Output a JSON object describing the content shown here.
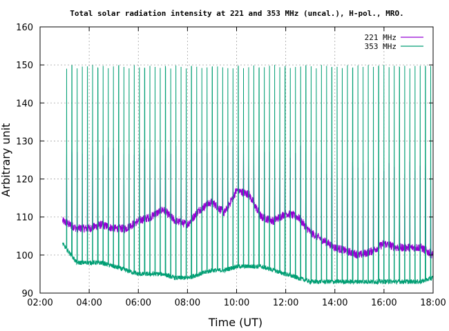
{
  "chart_data": {
    "type": "line",
    "title": "Total solar radiation intensity at 221 and 353 MHz (uncal.), H-pol., MRO.",
    "xlabel": "Time (UT)",
    "ylabel": "Arbitrary unit",
    "xlim": [
      "02:00",
      "18:00"
    ],
    "ylim": [
      90,
      160
    ],
    "xticks": [
      "02:00",
      "04:00",
      "06:00",
      "08:00",
      "10:00",
      "12:00",
      "14:00",
      "16:00",
      "18:00"
    ],
    "yticks": [
      "90",
      "100",
      "110",
      "120",
      "130",
      "140",
      "150",
      "160"
    ],
    "grid": true,
    "legend_position": "top-right",
    "colors": {
      "221 MHz": "#9400d3",
      "353 MHz": "#009e73"
    },
    "series": [
      {
        "name": "221 MHz",
        "x": [
          "02:55",
          "03:30",
          "04:00",
          "04:30",
          "05:00",
          "05:30",
          "06:00",
          "06:30",
          "07:00",
          "07:30",
          "08:00",
          "08:30",
          "09:00",
          "09:30",
          "10:00",
          "10:30",
          "11:00",
          "11:30",
          "12:00",
          "12:30",
          "13:00",
          "13:30",
          "14:00",
          "14:30",
          "15:00",
          "15:30",
          "16:00",
          "16:30",
          "17:00",
          "17:30",
          "18:00"
        ],
        "values": [
          109,
          107,
          107,
          108,
          107,
          107,
          109,
          110,
          112,
          109,
          108,
          112,
          114,
          111,
          117,
          116,
          110,
          109,
          111,
          110,
          106,
          104,
          102,
          101,
          100,
          101,
          103,
          102,
          102,
          102,
          100
        ]
      },
      {
        "name": "353 MHz",
        "x": [
          "02:55",
          "03:30",
          "04:00",
          "04:30",
          "05:00",
          "05:30",
          "06:00",
          "06:30",
          "07:00",
          "07:30",
          "08:00",
          "08:30",
          "09:00",
          "09:30",
          "10:00",
          "10:30",
          "11:00",
          "11:30",
          "12:00",
          "12:30",
          "13:00",
          "13:30",
          "14:00",
          "14:30",
          "15:00",
          "15:30",
          "16:00",
          "16:30",
          "17:00",
          "17:30",
          "18:00"
        ],
        "values": [
          103,
          98,
          98,
          98,
          97,
          96,
          95,
          95,
          95,
          94,
          94,
          95,
          96,
          96,
          97,
          97,
          97,
          96,
          95,
          94,
          93,
          93,
          93,
          93,
          93,
          93,
          93,
          93,
          93,
          93,
          94
        ]
      }
    ]
  }
}
